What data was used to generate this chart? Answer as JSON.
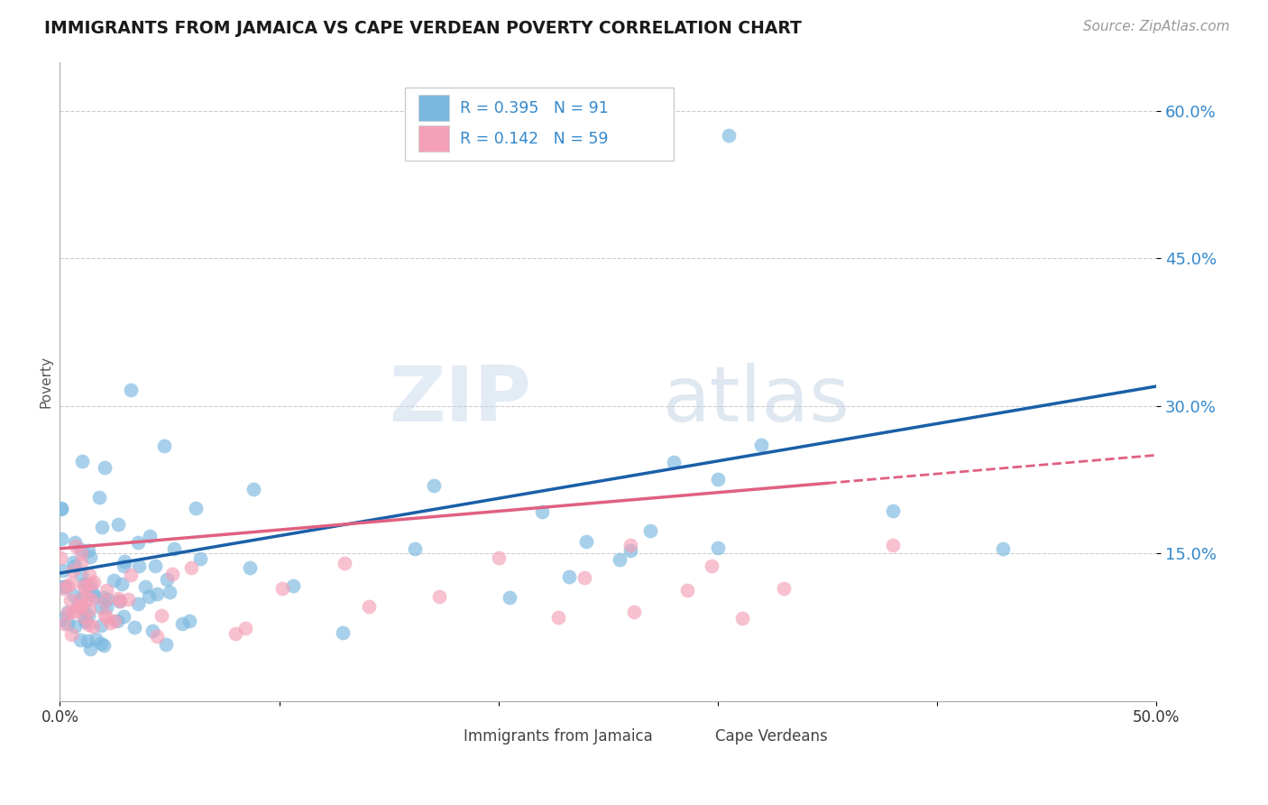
{
  "title": "IMMIGRANTS FROM JAMAICA VS CAPE VERDEAN POVERTY CORRELATION CHART",
  "source": "Source: ZipAtlas.com",
  "ylabel": "Poverty",
  "xlim": [
    0.0,
    0.5
  ],
  "ylim": [
    0.0,
    0.65
  ],
  "yticks": [
    0.15,
    0.3,
    0.45,
    0.6
  ],
  "ytick_labels": [
    "15.0%",
    "30.0%",
    "45.0%",
    "60.0%"
  ],
  "r_jamaica": 0.395,
  "n_jamaica": 91,
  "r_cape": 0.142,
  "n_cape": 59,
  "color_jamaica": "#7ab8e0",
  "color_cape": "#f4a0b8",
  "line_jamaica": "#1a5fa8",
  "line_cape": "#e06080",
  "watermark_zip": "ZIP",
  "watermark_atlas": "atlas",
  "background_color": "#ffffff",
  "seed_jamaica": 7,
  "seed_cape": 13,
  "line_j_x0": 0.0,
  "line_j_y0": 0.13,
  "line_j_x1": 0.5,
  "line_j_y1": 0.32,
  "line_c_x0": 0.0,
  "line_c_y0": 0.155,
  "line_c_x1": 0.5,
  "line_c_y1": 0.25,
  "line_c_solid_end": 0.35
}
